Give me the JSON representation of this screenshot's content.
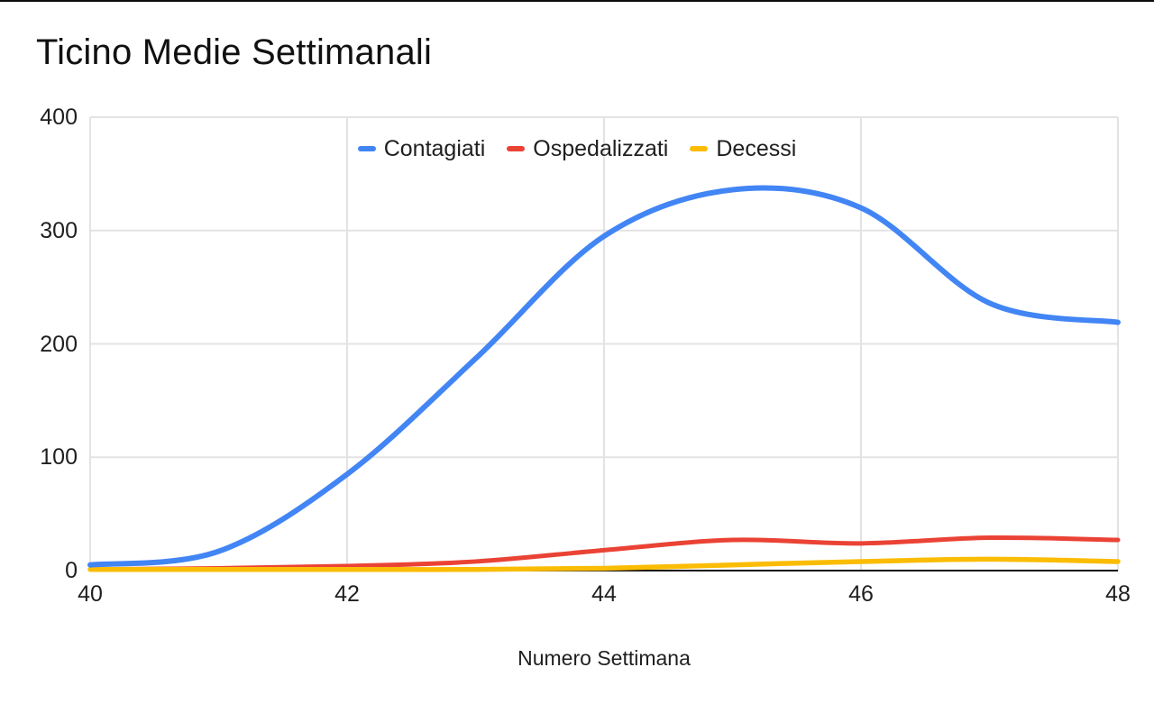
{
  "chart_data": {
    "type": "line",
    "title": "Ticino Medie Settimanali",
    "xlabel": "Numero Settimana",
    "ylabel": "",
    "smooth": true,
    "grid": true,
    "legend_position": "top",
    "xlim": [
      40,
      48
    ],
    "ylim": [
      0,
      400
    ],
    "x_ticks": [
      40,
      42,
      44,
      46,
      48
    ],
    "y_ticks": [
      0,
      100,
      200,
      300,
      400
    ],
    "x": [
      40,
      41,
      42,
      43,
      44,
      45,
      46,
      47,
      48
    ],
    "series": [
      {
        "name": "Contagiati",
        "color": "#4285F4",
        "values": [
          5,
          17,
          85,
          187,
          295,
          336,
          320,
          236,
          219
        ]
      },
      {
        "name": "Ospedalizzati",
        "color": "#EA4335",
        "values": [
          1,
          2,
          4,
          8,
          18,
          27,
          24,
          29,
          27
        ]
      },
      {
        "name": "Decessi",
        "color": "#FBBC04",
        "values": [
          1,
          1,
          1,
          1,
          2,
          5,
          8,
          10,
          8
        ]
      }
    ],
    "style": {
      "gridline_color": "#e3e3e3",
      "baseline_color": "#111111",
      "text_color": "#1f1f1f",
      "title_color": "#111111",
      "background": "#ffffff"
    }
  }
}
